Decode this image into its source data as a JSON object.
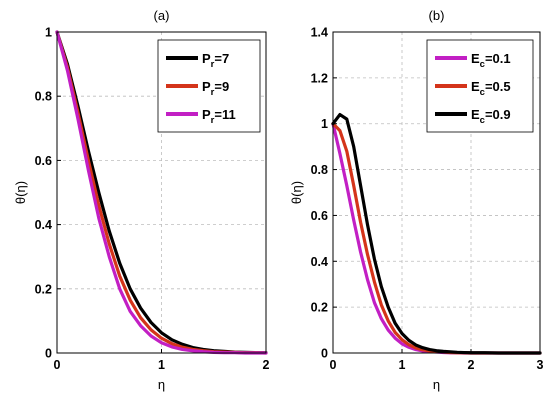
{
  "chart_data": [
    {
      "type": "line",
      "title": "(a)",
      "xlabel": "η",
      "ylabel": "θ(η)",
      "xlim": [
        0,
        2
      ],
      "ylim": [
        0,
        1
      ],
      "xticks": [
        "0",
        "1",
        "2"
      ],
      "yticks": [
        "0",
        "0.2",
        "0.4",
        "0.6",
        "0.8",
        "1"
      ],
      "grid": true,
      "legend_placement": "top-right",
      "series": [
        {
          "name_main": "P",
          "name_sub": "r",
          "name_rest": "=7",
          "color": "#000000",
          "x": [
            0,
            0.1,
            0.2,
            0.3,
            0.4,
            0.5,
            0.6,
            0.7,
            0.8,
            0.9,
            1.0,
            1.1,
            1.2,
            1.3,
            1.4,
            1.5,
            1.6,
            1.7,
            1.8,
            1.9,
            2.0
          ],
          "y": [
            1.0,
            0.9,
            0.77,
            0.63,
            0.5,
            0.38,
            0.28,
            0.2,
            0.14,
            0.095,
            0.063,
            0.041,
            0.027,
            0.017,
            0.011,
            0.007,
            0.005,
            0.003,
            0.002,
            0.001,
            0.001
          ]
        },
        {
          "name_main": "P",
          "name_sub": "r",
          "name_rest": "=9",
          "color": "#d4341a",
          "x": [
            0,
            0.1,
            0.2,
            0.3,
            0.4,
            0.5,
            0.6,
            0.7,
            0.8,
            0.9,
            1.0,
            1.1,
            1.2,
            1.3,
            1.4,
            1.5,
            1.6,
            1.7,
            1.8,
            1.9,
            2.0
          ],
          "y": [
            1.0,
            0.89,
            0.75,
            0.6,
            0.46,
            0.34,
            0.24,
            0.165,
            0.11,
            0.072,
            0.046,
            0.029,
            0.018,
            0.011,
            0.007,
            0.004,
            0.003,
            0.002,
            0.001,
            0.001,
            0.0
          ]
        },
        {
          "name_main": "P",
          "name_sub": "r",
          "name_rest": "=11",
          "color": "#c21fc4",
          "x": [
            0,
            0.1,
            0.2,
            0.3,
            0.4,
            0.5,
            0.6,
            0.7,
            0.8,
            0.9,
            1.0,
            1.1,
            1.2,
            1.3,
            1.4,
            1.5,
            1.6,
            1.7,
            1.8,
            1.9,
            2.0
          ],
          "y": [
            1.0,
            0.88,
            0.73,
            0.57,
            0.42,
            0.3,
            0.2,
            0.13,
            0.085,
            0.053,
            0.032,
            0.019,
            0.011,
            0.007,
            0.004,
            0.002,
            0.001,
            0.001,
            0.0,
            0.0,
            0.0
          ]
        }
      ]
    },
    {
      "type": "line",
      "title": "(b)",
      "xlabel": "η",
      "ylabel": "θ(η)",
      "xlim": [
        0,
        3
      ],
      "ylim": [
        0,
        1.4
      ],
      "xticks": [
        "0",
        "1",
        "2",
        "3"
      ],
      "yticks": [
        "0",
        "0.2",
        "0.4",
        "0.6",
        "0.8",
        "1",
        "1.2",
        "1.4"
      ],
      "grid": true,
      "legend_placement": "top-right",
      "series": [
        {
          "name_main": "E",
          "name_sub": "c",
          "name_rest": "=0.1",
          "color": "#c21fc4",
          "x": [
            0,
            0.1,
            0.2,
            0.3,
            0.4,
            0.5,
            0.6,
            0.7,
            0.8,
            0.9,
            1.0,
            1.1,
            1.2,
            1.3,
            1.4,
            1.5,
            1.6,
            1.7,
            1.8,
            1.9,
            2.0,
            2.2,
            2.4,
            2.6,
            2.8,
            3.0
          ],
          "y": [
            1.0,
            0.87,
            0.73,
            0.58,
            0.44,
            0.32,
            0.22,
            0.15,
            0.1,
            0.065,
            0.04,
            0.025,
            0.015,
            0.009,
            0.006,
            0.004,
            0.002,
            0.001,
            0.001,
            0.0,
            0.0,
            0.0,
            0.0,
            0.0,
            0.0,
            0.0
          ]
        },
        {
          "name_main": "E",
          "name_sub": "c",
          "name_rest": "=0.5",
          "color": "#d4341a",
          "x": [
            0,
            0.1,
            0.2,
            0.3,
            0.4,
            0.5,
            0.6,
            0.7,
            0.8,
            0.9,
            1.0,
            1.1,
            1.2,
            1.3,
            1.4,
            1.5,
            1.6,
            1.7,
            1.8,
            1.9,
            2.0,
            2.2,
            2.4,
            2.6,
            2.8,
            3.0
          ],
          "y": [
            1.0,
            0.97,
            0.88,
            0.73,
            0.57,
            0.43,
            0.31,
            0.21,
            0.14,
            0.09,
            0.058,
            0.036,
            0.022,
            0.014,
            0.009,
            0.006,
            0.004,
            0.002,
            0.001,
            0.001,
            0.0,
            0.0,
            0.0,
            0.0,
            0.0,
            0.0
          ]
        },
        {
          "name_main": "E",
          "name_sub": "c",
          "name_rest": "=0.9",
          "color": "#000000",
          "x": [
            0,
            0.1,
            0.2,
            0.3,
            0.4,
            0.5,
            0.6,
            0.7,
            0.8,
            0.9,
            1.0,
            1.1,
            1.2,
            1.3,
            1.4,
            1.5,
            1.6,
            1.7,
            1.8,
            1.9,
            2.0,
            2.2,
            2.4,
            2.6,
            2.8,
            3.0
          ],
          "y": [
            1.0,
            1.04,
            1.02,
            0.9,
            0.73,
            0.56,
            0.41,
            0.29,
            0.2,
            0.13,
            0.085,
            0.055,
            0.035,
            0.023,
            0.015,
            0.01,
            0.007,
            0.005,
            0.003,
            0.002,
            0.001,
            0.001,
            0.0,
            0.0,
            0.0,
            0.0
          ]
        }
      ]
    }
  ]
}
